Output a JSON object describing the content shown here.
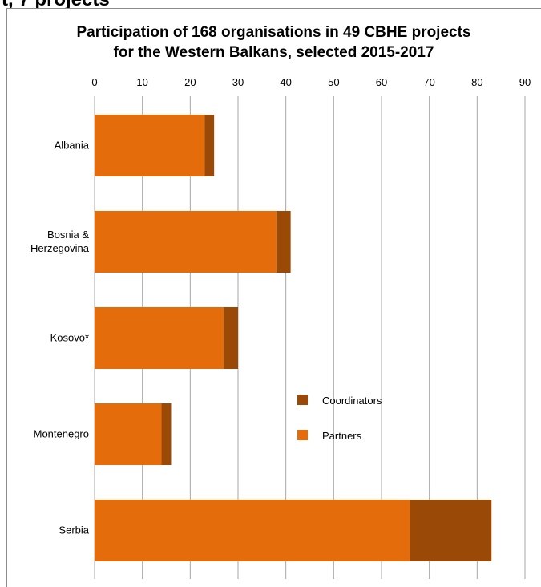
{
  "page": {
    "cut_heading": "t, 7 projects"
  },
  "colors": {
    "partners": "#E46C0A",
    "coordinators": "#9A4A06",
    "grid": "#a6a6a6"
  },
  "chart_data": {
    "type": "bar",
    "orientation": "horizontal",
    "stacked": true,
    "title_line1": "Participation of 168 organisations in 49 CBHE projects",
    "title_line2": "for the Western Balkans, selected 2015-2017",
    "categories": [
      "Albania",
      "Bosnia &\nHerzegovina",
      "Kosovo*",
      "Montenegro",
      "Serbia"
    ],
    "series": [
      {
        "name": "Partners",
        "values": [
          23,
          38,
          27,
          14,
          66
        ]
      },
      {
        "name": "Coordinators",
        "values": [
          2,
          3,
          3,
          2,
          17
        ]
      }
    ],
    "xlim": [
      0,
      90
    ],
    "xticks": [
      0,
      10,
      20,
      30,
      40,
      50,
      60,
      70,
      80,
      90
    ],
    "x_axis_position": "top",
    "grid": true,
    "legend": [
      {
        "label": "Coordinators",
        "series": "Coordinators"
      },
      {
        "label": "Partners",
        "series": "Partners"
      }
    ],
    "legend_position": "inside-right-middle"
  }
}
